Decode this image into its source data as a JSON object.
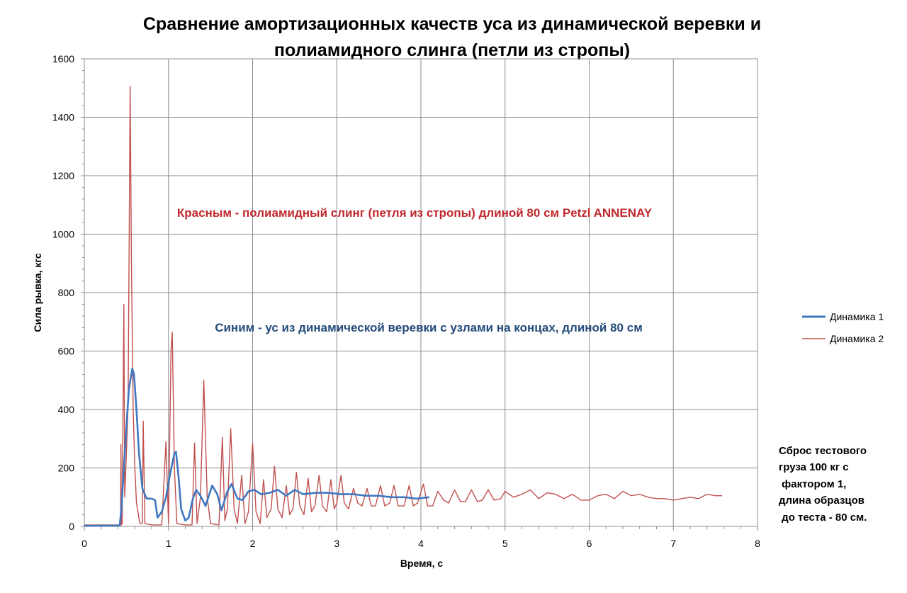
{
  "chart_data": {
    "type": "line",
    "title": [
      "Сравнение амортизационных качеств уса из динамической веревки и",
      "полиамидного слинга (петли из стропы)"
    ],
    "xlabel": "Время, с",
    "ylabel": "Сила рывка, кгс",
    "xlim": [
      0,
      8
    ],
    "ylim": [
      0,
      1600
    ],
    "x_ticks": [
      0,
      1,
      2,
      3,
      4,
      5,
      6,
      7,
      8
    ],
    "y_ticks": [
      0,
      200,
      400,
      600,
      800,
      1000,
      1200,
      1400,
      1600
    ],
    "grid": true,
    "legend_position": "right",
    "annotations": [
      "Красным - полиамидный слинг (петля из стропы) длиной 80 см Petzl ANNENAY",
      "Синим - ус из динамической веревки с узлами на концах, длиной 80 см"
    ],
    "note": [
      "Сброс тестового",
      "груза 100 кг с",
      " фактором 1,",
      "длина образцов",
      " до теста - 80 см."
    ],
    "series": [
      {
        "name": "Динамика 1",
        "color": "#3f77c1",
        "points": [
          [
            0.0,
            2
          ],
          [
            0.42,
            3
          ],
          [
            0.44,
            60
          ],
          [
            0.47,
            200
          ],
          [
            0.5,
            340
          ],
          [
            0.53,
            470
          ],
          [
            0.57,
            540
          ],
          [
            0.59,
            520
          ],
          [
            0.62,
            400
          ],
          [
            0.65,
            250
          ],
          [
            0.69,
            130
          ],
          [
            0.74,
            95
          ],
          [
            0.8,
            95
          ],
          [
            0.84,
            90
          ],
          [
            0.87,
            30
          ],
          [
            0.92,
            50
          ],
          [
            0.97,
            100
          ],
          [
            1.02,
            180
          ],
          [
            1.07,
            250
          ],
          [
            1.09,
            255
          ],
          [
            1.12,
            170
          ],
          [
            1.15,
            60
          ],
          [
            1.2,
            20
          ],
          [
            1.24,
            30
          ],
          [
            1.29,
            95
          ],
          [
            1.33,
            125
          ],
          [
            1.38,
            105
          ],
          [
            1.44,
            70
          ],
          [
            1.52,
            140
          ],
          [
            1.58,
            110
          ],
          [
            1.63,
            55
          ],
          [
            1.7,
            120
          ],
          [
            1.75,
            145
          ],
          [
            1.82,
            95
          ],
          [
            1.88,
            90
          ],
          [
            1.95,
            120
          ],
          [
            2.02,
            125
          ],
          [
            2.1,
            110
          ],
          [
            2.2,
            115
          ],
          [
            2.3,
            125
          ],
          [
            2.4,
            105
          ],
          [
            2.5,
            125
          ],
          [
            2.6,
            110
          ],
          [
            2.75,
            115
          ],
          [
            2.9,
            115
          ],
          [
            3.05,
            110
          ],
          [
            3.2,
            110
          ],
          [
            3.35,
            105
          ],
          [
            3.5,
            105
          ],
          [
            3.65,
            100
          ],
          [
            3.8,
            100
          ],
          [
            3.95,
            95
          ],
          [
            4.1,
            100
          ]
        ]
      },
      {
        "name": "Динамика 2",
        "color": "#c0504d",
        "points": [
          [
            0.0,
            5
          ],
          [
            0.4,
            5
          ],
          [
            0.43,
            5
          ],
          [
            0.435,
            280
          ],
          [
            0.44,
            5
          ],
          [
            0.45,
            10
          ],
          [
            0.47,
            760
          ],
          [
            0.48,
            100
          ],
          [
            0.5,
            250
          ],
          [
            0.52,
            420
          ],
          [
            0.545,
            1505
          ],
          [
            0.56,
            900
          ],
          [
            0.58,
            400
          ],
          [
            0.6,
            200
          ],
          [
            0.62,
            80
          ],
          [
            0.66,
            10
          ],
          [
            0.69,
            10
          ],
          [
            0.7,
            360
          ],
          [
            0.72,
            10
          ],
          [
            0.8,
            5
          ],
          [
            0.92,
            5
          ],
          [
            0.97,
            290
          ],
          [
            1.0,
            10
          ],
          [
            1.03,
            600
          ],
          [
            1.045,
            665
          ],
          [
            1.07,
            200
          ],
          [
            1.1,
            10
          ],
          [
            1.2,
            5
          ],
          [
            1.28,
            5
          ],
          [
            1.31,
            285
          ],
          [
            1.34,
            10
          ],
          [
            1.38,
            100
          ],
          [
            1.42,
            500
          ],
          [
            1.46,
            100
          ],
          [
            1.5,
            10
          ],
          [
            1.6,
            5
          ],
          [
            1.64,
            305
          ],
          [
            1.67,
            20
          ],
          [
            1.7,
            60
          ],
          [
            1.74,
            335
          ],
          [
            1.78,
            60
          ],
          [
            1.82,
            10
          ],
          [
            1.87,
            175
          ],
          [
            1.91,
            10
          ],
          [
            1.95,
            50
          ],
          [
            2.0,
            285
          ],
          [
            2.04,
            50
          ],
          [
            2.09,
            10
          ],
          [
            2.13,
            160
          ],
          [
            2.17,
            30
          ],
          [
            2.22,
            60
          ],
          [
            2.26,
            205
          ],
          [
            2.3,
            60
          ],
          [
            2.35,
            30
          ],
          [
            2.4,
            140
          ],
          [
            2.44,
            40
          ],
          [
            2.48,
            60
          ],
          [
            2.52,
            185
          ],
          [
            2.56,
            70
          ],
          [
            2.61,
            40
          ],
          [
            2.66,
            165
          ],
          [
            2.7,
            50
          ],
          [
            2.74,
            70
          ],
          [
            2.79,
            175
          ],
          [
            2.83,
            70
          ],
          [
            2.88,
            50
          ],
          [
            2.93,
            160
          ],
          [
            2.97,
            60
          ],
          [
            3.0,
            80
          ],
          [
            3.05,
            175
          ],
          [
            3.09,
            80
          ],
          [
            3.14,
            60
          ],
          [
            3.2,
            130
          ],
          [
            3.25,
            80
          ],
          [
            3.3,
            70
          ],
          [
            3.36,
            130
          ],
          [
            3.41,
            70
          ],
          [
            3.46,
            70
          ],
          [
            3.52,
            140
          ],
          [
            3.57,
            70
          ],
          [
            3.63,
            80
          ],
          [
            3.68,
            140
          ],
          [
            3.73,
            70
          ],
          [
            3.8,
            70
          ],
          [
            3.86,
            140
          ],
          [
            3.91,
            70
          ],
          [
            3.96,
            80
          ],
          [
            4.03,
            145
          ],
          [
            4.08,
            70
          ],
          [
            4.14,
            70
          ],
          [
            4.2,
            120
          ],
          [
            4.27,
            90
          ],
          [
            4.33,
            80
          ],
          [
            4.4,
            125
          ],
          [
            4.47,
            85
          ],
          [
            4.53,
            85
          ],
          [
            4.6,
            125
          ],
          [
            4.67,
            85
          ],
          [
            4.73,
            90
          ],
          [
            4.8,
            125
          ],
          [
            4.87,
            90
          ],
          [
            4.95,
            95
          ],
          [
            5.0,
            120
          ],
          [
            5.1,
            100
          ],
          [
            5.2,
            110
          ],
          [
            5.3,
            125
          ],
          [
            5.4,
            95
          ],
          [
            5.5,
            115
          ],
          [
            5.6,
            110
          ],
          [
            5.7,
            95
          ],
          [
            5.8,
            110
          ],
          [
            5.9,
            90
          ],
          [
            6.0,
            90
          ],
          [
            6.1,
            105
          ],
          [
            6.2,
            110
          ],
          [
            6.3,
            95
          ],
          [
            6.4,
            120
          ],
          [
            6.5,
            105
          ],
          [
            6.6,
            110
          ],
          [
            6.7,
            100
          ],
          [
            6.8,
            95
          ],
          [
            6.9,
            95
          ],
          [
            7.0,
            90
          ],
          [
            7.1,
            95
          ],
          [
            7.2,
            100
          ],
          [
            7.3,
            95
          ],
          [
            7.4,
            110
          ],
          [
            7.5,
            105
          ],
          [
            7.58,
            105
          ]
        ]
      }
    ]
  }
}
